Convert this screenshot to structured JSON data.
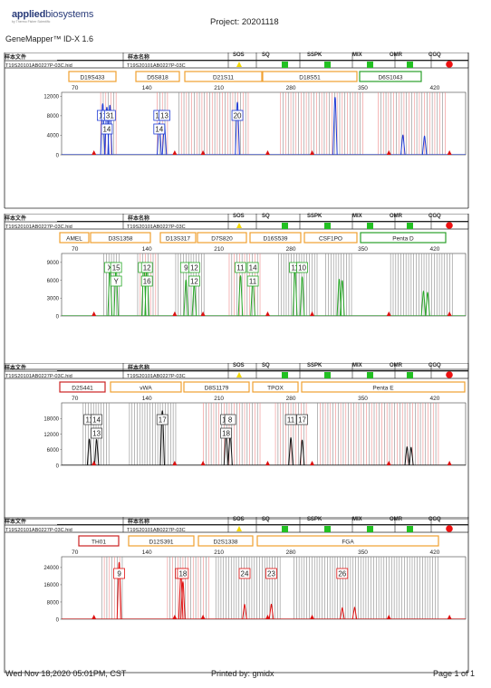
{
  "header": {
    "logo_main": "applied",
    "logo_main2": "biosystems",
    "logo_sub": "by Thermo Fisher Scientific",
    "app_title": "GeneMapper™ ID-X  1.6",
    "project": "Project: 20201118"
  },
  "columns": {
    "c1": "样本文件",
    "c2": "样本名称",
    "sos": "SOS",
    "sq": "SQ",
    "sspk": "SSPK",
    "mix": "MIX",
    "omr": "OMR",
    "cgq": "CGQ"
  },
  "row": {
    "file": "T19S20101AB0227P-03C.hid",
    "name": "T19S20101AB0227P-03C"
  },
  "x_ticks": [
    "70",
    "140",
    "210",
    "280",
    "350",
    "420"
  ],
  "colors": {
    "blue": "#1f3bd6",
    "green": "#28a828",
    "black": "#111111",
    "red": "#e01010",
    "bin_gray": "#8a8a8a",
    "bin_pink": "#f08a8a",
    "marker_orange": "#f0a030",
    "marker_green": "#2aa02a",
    "marker_red": "#cc2222"
  },
  "panels": [
    {
      "dye": "blue",
      "y_ticks": [
        "12000",
        "8000",
        "4000",
        "0"
      ],
      "markers": [
        {
          "name": "D19S433",
          "color": "orange"
        },
        {
          "name": "D5S818",
          "color": "orange"
        },
        {
          "name": "D21S11",
          "color": "orange"
        },
        {
          "name": "D18S51",
          "color": "orange"
        },
        {
          "name": "D6S1043",
          "color": "green"
        }
      ],
      "alleles_top": [
        "13",
        "12",
        "31",
        "15",
        "13",
        "20"
      ],
      "alleles_bottom": [
        "14",
        "14"
      ],
      "peaks": [
        {
          "bp": 97,
          "height": 10500
        },
        {
          "bp": 101,
          "height": 9800
        },
        {
          "bp": 104,
          "height": 10200
        },
        {
          "bp": 152,
          "height": 6600
        },
        {
          "bp": 157,
          "height": 6200
        },
        {
          "bp": 228,
          "height": 10800
        },
        {
          "bp": 323,
          "height": 11800
        },
        {
          "bp": 389,
          "height": 4100
        },
        {
          "bp": 410,
          "height": 3900
        }
      ]
    },
    {
      "dye": "green",
      "y_ticks": [
        "9000",
        "6000",
        "3000",
        "0"
      ],
      "markers": [
        {
          "name": "AMEL",
          "color": "orange"
        },
        {
          "name": "D3S1358",
          "color": "orange"
        },
        {
          "name": "D13S317",
          "color": "orange"
        },
        {
          "name": "D7S820",
          "color": "orange"
        },
        {
          "name": "D16S539",
          "color": "orange"
        },
        {
          "name": "CSF1PO",
          "color": "orange"
        },
        {
          "name": "Penta D",
          "color": "green"
        }
      ],
      "alleles_top": [
        "X",
        "15",
        "9",
        "12",
        "9",
        "12",
        "11",
        "14",
        "11",
        "10"
      ],
      "alleles_bottom": [
        "Y",
        "16",
        "12",
        "11"
      ],
      "peaks": [
        {
          "bp": 104,
          "height": 8000
        },
        {
          "bp": 110,
          "height": 8400
        },
        {
          "bp": 137,
          "height": 9000
        },
        {
          "bp": 140,
          "height": 8700
        },
        {
          "bp": 178,
          "height": 6100
        },
        {
          "bp": 186,
          "height": 5400
        },
        {
          "bp": 231,
          "height": 6800
        },
        {
          "bp": 243,
          "height": 6300
        },
        {
          "bp": 284,
          "height": 7700
        },
        {
          "bp": 291,
          "height": 6600
        },
        {
          "bp": 327,
          "height": 6200
        },
        {
          "bp": 330,
          "height": 6000
        },
        {
          "bp": 409,
          "height": 4200
        },
        {
          "bp": 413,
          "height": 4000
        }
      ]
    },
    {
      "dye": "black",
      "y_ticks": [
        "18000",
        "12000",
        "6000",
        "0"
      ],
      "markers": [
        {
          "name": "D2S441",
          "color": "red"
        },
        {
          "name": "vWA",
          "color": "orange"
        },
        {
          "name": "D8S1179",
          "color": "orange"
        },
        {
          "name": "TPOX",
          "color": "orange"
        },
        {
          "name": "Penta E",
          "color": "orange"
        }
      ],
      "alleles_top": [
        "11",
        "14",
        "17",
        "12",
        "8",
        "11",
        "17"
      ],
      "alleles_bottom": [
        "13",
        "18"
      ],
      "peaks": [
        {
          "bp": 84,
          "height": 10200
        },
        {
          "bp": 91,
          "height": 10000
        },
        {
          "bp": 155,
          "height": 21000
        },
        {
          "bp": 217,
          "height": 12500
        },
        {
          "bp": 221,
          "height": 12100
        },
        {
          "bp": 280,
          "height": 10700
        },
        {
          "bp": 291,
          "height": 9800
        },
        {
          "bp": 393,
          "height": 7200
        },
        {
          "bp": 397,
          "height": 7000
        }
      ]
    },
    {
      "dye": "red",
      "y_ticks": [
        "24000",
        "16000",
        "8000",
        "0"
      ],
      "markers": [
        {
          "name": "TH01",
          "color": "red"
        },
        {
          "name": "D12S391",
          "color": "orange"
        },
        {
          "name": "D2S1338",
          "color": "orange"
        },
        {
          "name": "FGA",
          "color": "orange"
        }
      ],
      "alleles_top": [
        "9",
        "20",
        "18",
        "24",
        "23",
        "26"
      ],
      "alleles_bottom": [],
      "peaks": [
        {
          "bp": 113,
          "height": 26500
        },
        {
          "bp": 173,
          "height": 21000
        },
        {
          "bp": 175,
          "height": 17500
        },
        {
          "bp": 235,
          "height": 7000
        },
        {
          "bp": 261,
          "height": 7100
        },
        {
          "bp": 330,
          "height": 5500
        },
        {
          "bp": 342,
          "height": 5700
        }
      ]
    }
  ],
  "footer": {
    "date": "Wed Nov 18,2020 05:01PM, CST",
    "printed": "Printed by: gmidx",
    "page": "Page 1 of 1"
  }
}
